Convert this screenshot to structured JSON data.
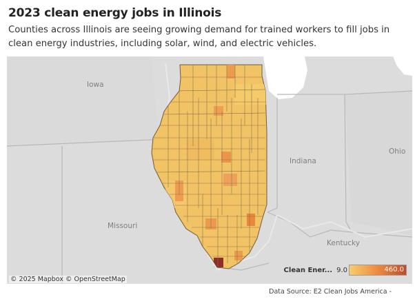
{
  "header": {
    "title": "2023 clean energy jobs in Illinois",
    "subtitle": "Counties across Illinois are seeing growing demand for trained workers to fill jobs in clean energy industries, including solar, wind, and electric vehicles."
  },
  "map": {
    "places": {
      "iowa": "Iowa",
      "indiana": "Indiana",
      "ohio": "Ohio",
      "missouri": "Missouri",
      "kentucky": "Kentucky"
    },
    "attribution": {
      "mapbox": "© 2025 Mapbox",
      "osm": "© OpenStreetMap"
    },
    "colors": {
      "land": "#dcdcdc",
      "water": "#ffffff",
      "county_fill": "#f2c365",
      "county_border": "#8a7450",
      "state_border": "#b8b8b8",
      "highlight_orange": "#ec9a4c",
      "highlight_dark": "#c24a2c",
      "highlight_darkest": "#8e2f23"
    }
  },
  "legend": {
    "title": "Clean Ener...",
    "min_label": "9.0",
    "max_label": "460.0",
    "min_value": 9.0,
    "max_value": 460.0,
    "gradient": [
      "#f6cd6e",
      "#ee8a3c",
      "#c24a2c"
    ]
  },
  "footer": {
    "source": "Data Source: E2 Clean Jobs America -"
  }
}
